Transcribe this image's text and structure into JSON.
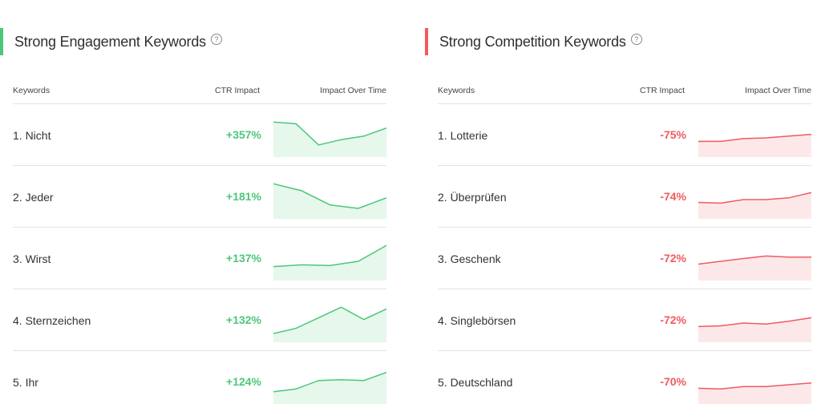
{
  "colors": {
    "positive": "#4cc77a",
    "negative": "#f05a5f",
    "positive_fill": "#e6f7ec",
    "negative_fill": "#fde8e9"
  },
  "engagement": {
    "title": "Strong Engagement Keywords",
    "help_glyph": "?",
    "col_keywords": "Keywords",
    "col_ctr": "CTR Impact",
    "col_time": "Impact Over Time",
    "rows": [
      {
        "keyword": "1. Nicht",
        "ctr": "+357%",
        "trend": [
          0.95,
          0.9,
          0.3,
          0.45,
          0.55,
          0.78
        ]
      },
      {
        "keyword": "2. Jeder",
        "ctr": "+181%",
        "trend": [
          0.95,
          0.75,
          0.35,
          0.25,
          0.55
        ]
      },
      {
        "keyword": "3. Wirst",
        "ctr": "+137%",
        "trend": [
          0.35,
          0.4,
          0.38,
          0.5,
          0.95
        ]
      },
      {
        "keyword": "4. Sternzeichen",
        "ctr": "+132%",
        "trend": [
          0.2,
          0.35,
          0.65,
          0.95,
          0.6,
          0.9
        ]
      },
      {
        "keyword": "5. Ihr",
        "ctr": "+124%",
        "trend": [
          0.3,
          0.38,
          0.62,
          0.64,
          0.62,
          0.85
        ]
      }
    ]
  },
  "competition": {
    "title": "Strong Competition Keywords",
    "help_glyph": "?",
    "col_keywords": "Keywords",
    "col_ctr": "CTR Impact",
    "col_time": "Impact Over Time",
    "rows": [
      {
        "keyword": "1. Lotterie",
        "ctr": "-75%",
        "trend": [
          0.4,
          0.4,
          0.48,
          0.5,
          0.55,
          0.6
        ]
      },
      {
        "keyword": "2. Überprüfen",
        "ctr": "-74%",
        "trend": [
          0.42,
          0.4,
          0.5,
          0.5,
          0.55,
          0.7
        ]
      },
      {
        "keyword": "3. Geschenk",
        "ctr": "-72%",
        "trend": [
          0.42,
          0.5,
          0.58,
          0.65,
          0.62,
          0.62
        ]
      },
      {
        "keyword": "4. Singlebörsen",
        "ctr": "-72%",
        "trend": [
          0.4,
          0.42,
          0.5,
          0.47,
          0.55,
          0.65
        ]
      },
      {
        "keyword": "5. Deutschland",
        "ctr": "-70%",
        "trend": [
          0.4,
          0.38,
          0.45,
          0.45,
          0.5,
          0.55
        ]
      }
    ]
  }
}
